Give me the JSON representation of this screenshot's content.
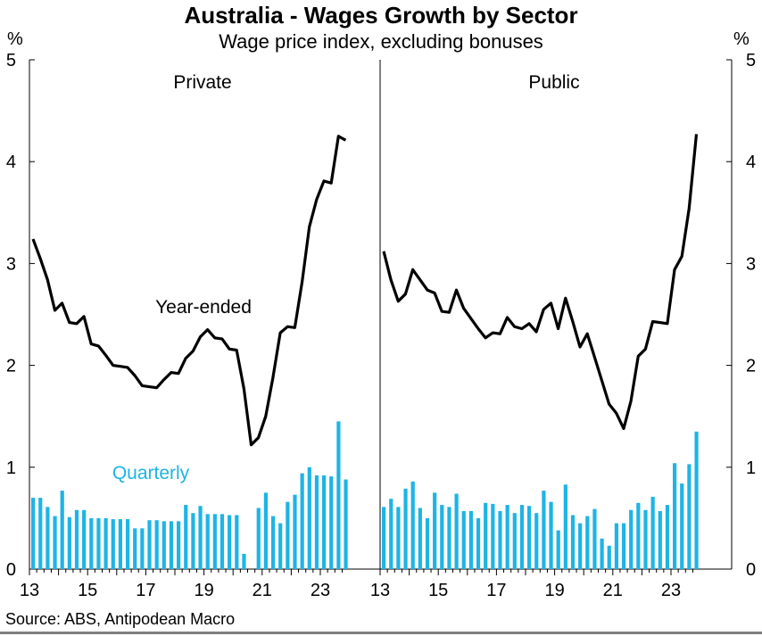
{
  "title": "Australia - Wages Growth by Sector",
  "subtitle": "Wage price index, excluding bonuses",
  "source": "Source: ABS, Antipodean Macro",
  "unit_left": "%",
  "unit_right": "%",
  "labels": {
    "year_ended": "Year-ended",
    "quarterly": "Quarterly"
  },
  "colors": {
    "line": "#000000",
    "bars": "#1eb4e6"
  },
  "chart_data": [
    {
      "type": "line+bar",
      "panel": "Private",
      "ylim": [
        0,
        5
      ],
      "yticks": [
        0,
        1,
        2,
        3,
        4,
        5
      ],
      "xticks": [
        "13",
        "15",
        "17",
        "19",
        "21",
        "23"
      ],
      "x_start_quarter": "2013 Q1",
      "series": [
        {
          "name": "Year-ended",
          "values": [
            3.24,
            3.05,
            2.84,
            2.54,
            2.61,
            2.42,
            2.41,
            2.48,
            2.21,
            2.19,
            2.1,
            2.0,
            1.99,
            1.98,
            1.9,
            1.8,
            1.79,
            1.78,
            1.86,
            1.93,
            1.92,
            2.07,
            2.14,
            2.28,
            2.35,
            2.27,
            2.26,
            2.16,
            2.15,
            1.77,
            1.22,
            1.29,
            1.5,
            1.88,
            2.32,
            2.38,
            2.37,
            2.82,
            3.36,
            3.63,
            3.81,
            3.79,
            4.25,
            4.21
          ]
        },
        {
          "name": "Quarterly",
          "values": [
            0.7,
            0.7,
            0.61,
            0.52,
            0.77,
            0.51,
            0.58,
            0.58,
            0.5,
            0.5,
            0.5,
            0.49,
            0.49,
            0.49,
            0.4,
            0.4,
            0.48,
            0.48,
            0.47,
            0.47,
            0.47,
            0.63,
            0.55,
            0.62,
            0.54,
            0.54,
            0.54,
            0.53,
            0.53,
            0.15,
            null,
            0.6,
            0.75,
            0.52,
            0.45,
            0.66,
            0.73,
            0.94,
            1.0,
            0.92,
            0.92,
            0.91,
            1.45,
            0.88
          ]
        }
      ]
    },
    {
      "type": "line+bar",
      "panel": "Public",
      "ylim": [
        0,
        5
      ],
      "yticks": [
        0,
        1,
        2,
        3,
        4,
        5
      ],
      "xticks": [
        "13",
        "15",
        "17",
        "19",
        "21",
        "23"
      ],
      "x_start_quarter": "2013 Q1",
      "series": [
        {
          "name": "Year-ended",
          "values": [
            3.12,
            2.84,
            2.63,
            2.7,
            2.94,
            2.84,
            2.74,
            2.71,
            2.53,
            2.52,
            2.74,
            2.56,
            2.46,
            2.36,
            2.27,
            2.32,
            2.31,
            2.47,
            2.38,
            2.36,
            2.41,
            2.33,
            2.55,
            2.61,
            2.36,
            2.66,
            2.43,
            2.18,
            2.31,
            2.08,
            1.85,
            1.62,
            1.53,
            1.38,
            1.65,
            2.09,
            2.16,
            2.43,
            2.42,
            2.41,
            2.94,
            3.07,
            3.54,
            4.27
          ]
        },
        {
          "name": "Quarterly",
          "values": [
            0.61,
            0.69,
            0.61,
            0.79,
            0.86,
            0.6,
            0.5,
            0.75,
            0.63,
            0.61,
            0.74,
            0.57,
            0.57,
            0.5,
            0.65,
            0.64,
            0.57,
            0.63,
            0.55,
            0.63,
            0.62,
            0.55,
            0.77,
            0.66,
            0.38,
            0.83,
            0.53,
            0.45,
            0.52,
            0.59,
            0.3,
            0.23,
            0.45,
            0.45,
            0.58,
            0.65,
            0.58,
            0.71,
            0.57,
            0.63,
            1.04,
            0.84,
            1.03,
            1.35
          ]
        }
      ]
    }
  ]
}
